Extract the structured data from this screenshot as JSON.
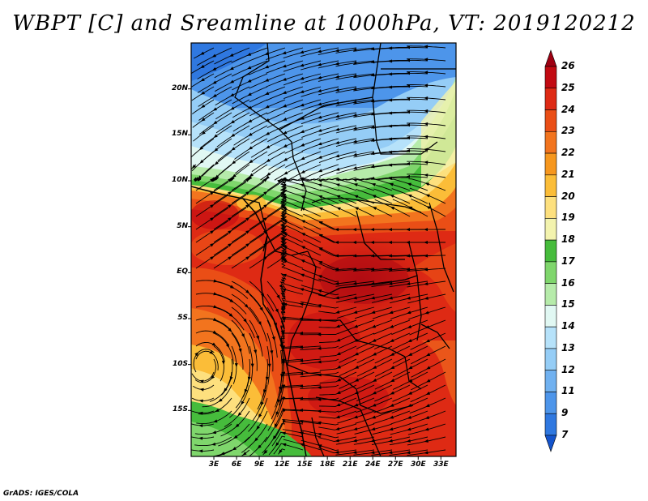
{
  "title": "WBPT [C] and Sreamline at 1000hPa, VT: 2019120212",
  "credit": "GrADS: IGES/COLA",
  "map": {
    "variable": "Wet-bulb potential temperature",
    "units": "C",
    "level": "1000hPa",
    "valid_time": "2019120212",
    "lon_range": [
      0,
      35
    ],
    "lat_range": [
      -20,
      25
    ],
    "lat_labels": [
      {
        "lat": 20,
        "label": "20N"
      },
      {
        "lat": 15,
        "label": "15N"
      },
      {
        "lat": 10,
        "label": "10N"
      },
      {
        "lat": 5,
        "label": "5N"
      },
      {
        "lat": 0,
        "label": "EQ"
      },
      {
        "lat": -5,
        "label": "5S"
      },
      {
        "lat": -10,
        "label": "10S"
      },
      {
        "lat": -15,
        "label": "15S"
      }
    ],
    "lon_labels": [
      {
        "lon": 3,
        "label": "3E"
      },
      {
        "lon": 6,
        "label": "6E"
      },
      {
        "lon": 9,
        "label": "9E"
      },
      {
        "lon": 12,
        "label": "12E"
      },
      {
        "lon": 15,
        "label": "15E"
      },
      {
        "lon": 18,
        "label": "18E"
      },
      {
        "lon": 21,
        "label": "21E"
      },
      {
        "lon": 24,
        "label": "24E"
      },
      {
        "lon": 27,
        "label": "27E"
      },
      {
        "lon": 30,
        "label": "30E"
      },
      {
        "lon": 33,
        "label": "33E"
      }
    ]
  },
  "colorbar": {
    "labels": [
      "26",
      "25",
      "24",
      "23",
      "22",
      "21",
      "20",
      "19",
      "18",
      "17",
      "16",
      "15",
      "14",
      "13",
      "12",
      "11",
      "9",
      "7"
    ],
    "colors": [
      "#9e0012",
      "#c20a12",
      "#de2a14",
      "#ea4e16",
      "#f2741e",
      "#f6971e",
      "#fbbd38",
      "#fde07e",
      "#f3f3ae",
      "#46bc3c",
      "#7fd66c",
      "#b6ebaa",
      "#e1f8f3",
      "#b6e2fa",
      "#95cdf6",
      "#70b1f0",
      "#4d95ea",
      "#2f78e0",
      "#1454cc"
    ]
  }
}
